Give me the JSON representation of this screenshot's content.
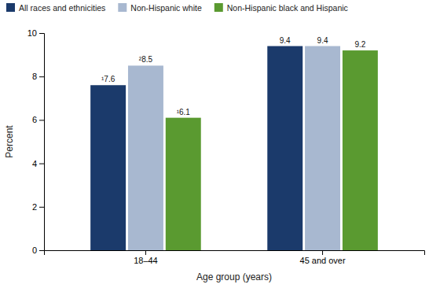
{
  "chart_data": {
    "type": "bar",
    "categories": [
      "18–44",
      "45 and over"
    ],
    "series": [
      {
        "name": "All races and ethnicities",
        "color": "#1b3a6b",
        "values": [
          7.6,
          9.4
        ],
        "value_labels": [
          "¹7.6",
          "9.4"
        ]
      },
      {
        "name": "Non-Hispanic white",
        "color": "#a8b8d0",
        "values": [
          8.5,
          9.4
        ],
        "value_labels": [
          "²8.5",
          "9.4"
        ]
      },
      {
        "name": "Non-Hispanic black and Hispanic",
        "color": "#5a9a30",
        "values": [
          6.1,
          9.2
        ],
        "value_labels": [
          "¹6.1",
          "9.2"
        ]
      }
    ],
    "xlabel": "Age group (years)",
    "ylabel": "Percent",
    "ylim": [
      0,
      10
    ],
    "yticks": [
      0,
      2,
      4,
      6,
      8,
      10
    ],
    "grid": false,
    "legend": "upper left",
    "data_labels": true
  }
}
